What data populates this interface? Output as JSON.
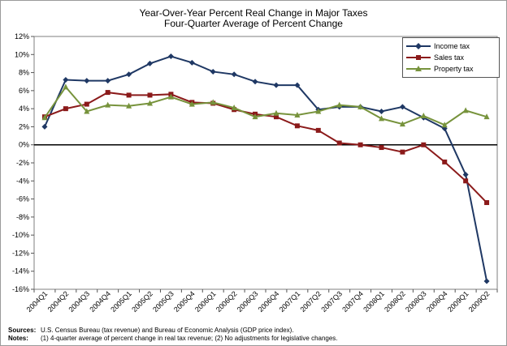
{
  "chart_data": {
    "type": "line",
    "title": "Year-Over-Year Percent Real Change in Major Taxes",
    "subtitle": "Four-Quarter Average of Percent Change",
    "xlabel": "",
    "ylabel": "",
    "ylim": [
      -16,
      12
    ],
    "yticks": [
      12,
      10,
      8,
      6,
      4,
      2,
      0,
      -2,
      -4,
      -6,
      -8,
      -10,
      -12,
      -14,
      -16
    ],
    "ytick_labels": [
      "12%",
      "10%",
      "8%",
      "6%",
      "4%",
      "2%",
      "0%",
      "-2%",
      "-4%",
      "-6%",
      "-8%",
      "-10%",
      "-12%",
      "-14%",
      "-16%"
    ],
    "categories": [
      "2004Q1",
      "2004Q2",
      "2004Q3",
      "2004Q4",
      "2005Q1",
      "2005Q2",
      "2005Q3",
      "2005Q4",
      "2006Q1",
      "2006Q2",
      "2006Q3",
      "2006Q4",
      "2007Q1",
      "2007Q2",
      "2007Q3",
      "2007Q4",
      "2008Q1",
      "2008Q2",
      "2008Q3",
      "2008Q4",
      "2009Q1",
      "2009Q2"
    ],
    "grid": false,
    "legend_position": "top-right",
    "series": [
      {
        "name": "Income tax",
        "color": "#1f3864",
        "marker": "diamond",
        "values": [
          2.0,
          7.2,
          7.1,
          7.1,
          7.8,
          9.0,
          9.8,
          9.1,
          8.1,
          7.8,
          7.0,
          6.6,
          6.6,
          3.9,
          4.2,
          4.2,
          3.7,
          4.2,
          3.0,
          1.8,
          -3.3,
          -15.1
        ]
      },
      {
        "name": "Sales tax",
        "color": "#8b1a1a",
        "marker": "square",
        "values": [
          3.1,
          4.0,
          4.5,
          5.8,
          5.5,
          5.5,
          5.6,
          4.7,
          4.6,
          3.9,
          3.4,
          3.1,
          2.1,
          1.6,
          0.2,
          0.0,
          -0.3,
          -0.8,
          0.0,
          -1.9,
          -4.0,
          -6.4
        ]
      },
      {
        "name": "Property tax",
        "color": "#77933c",
        "marker": "triangle",
        "values": [
          3.0,
          6.4,
          3.7,
          4.4,
          4.3,
          4.6,
          5.3,
          4.5,
          4.7,
          4.1,
          3.1,
          3.5,
          3.3,
          3.7,
          4.4,
          4.2,
          2.9,
          2.3,
          3.2,
          2.2,
          3.8,
          3.1
        ]
      }
    ]
  },
  "notes": {
    "sources_label": "Sources:",
    "sources_text": "U.S. Census Bureau (tax revenue) and Bureau of Economic Analysis (GDP price index).",
    "notes_label": "Notes:",
    "notes_text": "(1) 4-quarter average of percent change in real tax revenue; (2) No adjustments for legislative changes."
  }
}
